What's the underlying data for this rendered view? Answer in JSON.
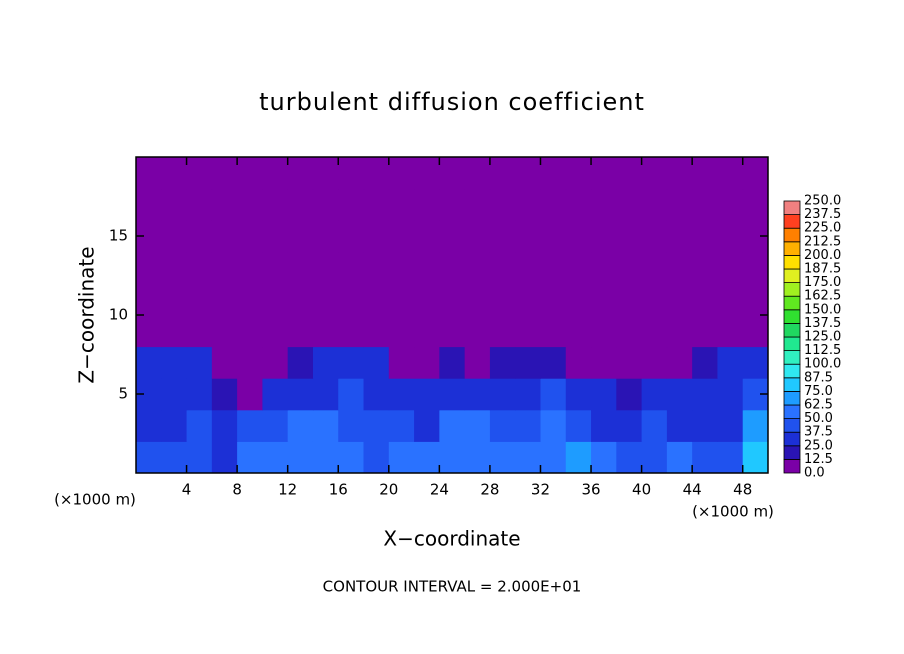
{
  "chart_data": {
    "type": "heatmap",
    "title": "turbulent diffusion coefficient",
    "x_label": "X−coordinate",
    "y_label": "Z−coordinate",
    "x_unit_left": "(×1000 m)",
    "x_unit_right": "(×1000 m)",
    "note": "CONTOUR INTERVAL = 2.000E+01",
    "xlim": [
      0,
      50
    ],
    "ylim": [
      0,
      20
    ],
    "xticks": [
      4,
      8,
      12,
      16,
      20,
      24,
      28,
      32,
      36,
      40,
      44,
      48
    ],
    "yticks": [
      5,
      10,
      15
    ],
    "x": [
      1,
      3,
      5,
      7,
      9,
      11,
      13,
      15,
      17,
      19,
      21,
      23,
      25,
      27,
      29,
      31,
      33,
      35,
      37,
      39,
      41,
      43,
      45,
      47,
      49
    ],
    "y": [
      1,
      3,
      5,
      7,
      9,
      11,
      13,
      15,
      17,
      19
    ],
    "values": [
      [
        45,
        40,
        40,
        35,
        50,
        60,
        55,
        62,
        50,
        45,
        55,
        50,
        62,
        60,
        50,
        55,
        62,
        65,
        55,
        40,
        45,
        50,
        40,
        45,
        75
      ],
      [
        35,
        35,
        40,
        30,
        40,
        45,
        55,
        60,
        40,
        45,
        40,
        35,
        50,
        55,
        40,
        45,
        50,
        40,
        35,
        35,
        40,
        35,
        30,
        35,
        70
      ],
      [
        30,
        30,
        35,
        20,
        5,
        35,
        30,
        30,
        40,
        30,
        35,
        30,
        35,
        30,
        35,
        30,
        40,
        30,
        25,
        20,
        30,
        35,
        30,
        35,
        40
      ],
      [
        30,
        25,
        25,
        10,
        0,
        0,
        15,
        25,
        30,
        30,
        10,
        5,
        15,
        10,
        20,
        15,
        20,
        10,
        0,
        0,
        5,
        10,
        20,
        25,
        30
      ],
      [
        0,
        0,
        0,
        0,
        0,
        0,
        5,
        5,
        0,
        0,
        0,
        0,
        0,
        0,
        0,
        0,
        0,
        0,
        0,
        0,
        0,
        0,
        0,
        0,
        0
      ],
      [
        0,
        0,
        0,
        0,
        0,
        0,
        0,
        0,
        0,
        0,
        0,
        0,
        0,
        0,
        0,
        0,
        0,
        0,
        0,
        0,
        0,
        0,
        0,
        0,
        0
      ],
      [
        0,
        0,
        0,
        0,
        0,
        0,
        0,
        0,
        0,
        0,
        0,
        0,
        0,
        0,
        0,
        0,
        0,
        0,
        0,
        0,
        0,
        0,
        0,
        0,
        0
      ],
      [
        0,
        0,
        0,
        0,
        0,
        0,
        0,
        0,
        0,
        0,
        0,
        0,
        0,
        0,
        0,
        0,
        0,
        0,
        0,
        0,
        0,
        0,
        0,
        0,
        0
      ],
      [
        0,
        0,
        0,
        0,
        0,
        0,
        0,
        0,
        0,
        0,
        0,
        0,
        0,
        0,
        0,
        0,
        0,
        0,
        0,
        0,
        0,
        0,
        0,
        0,
        0
      ],
      [
        0,
        0,
        0,
        0,
        0,
        0,
        0,
        0,
        0,
        0,
        0,
        0,
        0,
        0,
        0,
        0,
        0,
        0,
        0,
        0,
        0,
        0,
        0,
        0,
        0
      ]
    ],
    "colorbar": {
      "levels": [
        {
          "value": 0,
          "label": "0.0"
        },
        {
          "value": 12.5,
          "label": "12.5"
        },
        {
          "value": 25,
          "label": "25.0"
        },
        {
          "value": 37.5,
          "label": "37.5"
        },
        {
          "value": 50,
          "label": "50.0"
        },
        {
          "value": 62.5,
          "label": "62.5"
        },
        {
          "value": 75,
          "label": "75.0"
        },
        {
          "value": 87.5,
          "label": "87.5"
        },
        {
          "value": 100,
          "label": "100.0"
        },
        {
          "value": 112.5,
          "label": "112.5"
        },
        {
          "value": 125,
          "label": "125.0"
        },
        {
          "value": 137.5,
          "label": "137.5"
        },
        {
          "value": 150,
          "label": "150.0"
        },
        {
          "value": 162.5,
          "label": "162.5"
        },
        {
          "value": 175,
          "label": "175.0"
        },
        {
          "value": 187.5,
          "label": "187.5"
        },
        {
          "value": 200,
          "label": "200.0"
        },
        {
          "value": 212.5,
          "label": "212.5"
        },
        {
          "value": 225,
          "label": "225.0"
        },
        {
          "value": 237.5,
          "label": "237.5"
        },
        {
          "value": 250,
          "label": "250.0"
        }
      ],
      "colors": [
        "#7a00a6",
        "#2a14b4",
        "#1c30d6",
        "#2052ee",
        "#2a72ff",
        "#1e9cff",
        "#20c8ff",
        "#30e8f0",
        "#30f0c0",
        "#20e890",
        "#20d860",
        "#30e030",
        "#60e820",
        "#a0f020",
        "#e0f020",
        "#ffe000",
        "#ffb000",
        "#ff8000",
        "#ff4020",
        "#f08080"
      ]
    }
  }
}
